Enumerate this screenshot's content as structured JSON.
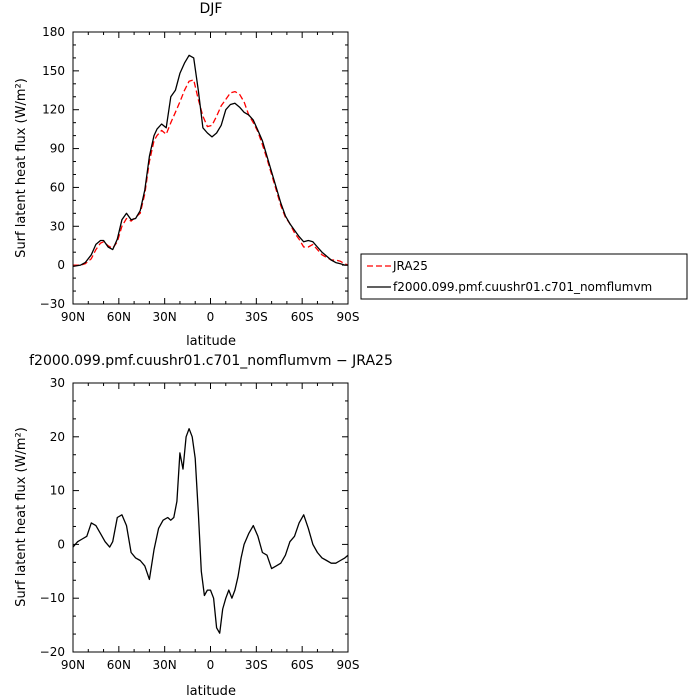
{
  "chart_data": [
    {
      "type": "line",
      "title": "DJF",
      "xlabel": "latitude",
      "ylabel": "Surf latent heat flux (W/m²)",
      "xlim": [
        -90,
        90
      ],
      "ylim": [
        -30,
        180
      ],
      "xticks": [
        -90,
        -60,
        -30,
        0,
        30,
        60,
        90
      ],
      "xticklabels": [
        "90N",
        "60N",
        "30N",
        "0",
        "30S",
        "60S",
        "90S"
      ],
      "yticks": [
        -30,
        0,
        30,
        60,
        90,
        120,
        150,
        180
      ],
      "yticklabels": [
        "−30",
        "0",
        "30",
        "60",
        "90",
        "120",
        "150",
        "180"
      ],
      "legend": "right",
      "series": [
        {
          "name": "JRA25",
          "color": "#ff0000",
          "style": "dashed",
          "x": [
            -90,
            -85,
            -82,
            -78,
            -75,
            -72,
            -70,
            -67,
            -64,
            -61,
            -58,
            -55,
            -52,
            -49,
            -46,
            -43,
            -40,
            -37,
            -35,
            -32,
            -29,
            -26,
            -23,
            -20,
            -17,
            -14,
            -11,
            -8,
            -5,
            -2,
            1,
            4,
            7,
            10,
            13,
            16,
            19,
            22,
            25,
            28,
            31,
            34,
            37,
            40,
            43,
            46,
            49,
            52,
            55,
            58,
            61,
            64,
            67,
            70,
            73,
            76,
            79,
            82,
            85,
            88,
            90
          ],
          "y": [
            0,
            0,
            1,
            5,
            12,
            17,
            18,
            15,
            13,
            18,
            30,
            36,
            34,
            37,
            40,
            55,
            80,
            96,
            100,
            104,
            101,
            110,
            118,
            126,
            135,
            142,
            143,
            128,
            115,
            107,
            108,
            115,
            123,
            128,
            133,
            134,
            132,
            126,
            116,
            110,
            103,
            93,
            82,
            70,
            58,
            46,
            37,
            32,
            25,
            20,
            14,
            14,
            16,
            12,
            8,
            6,
            4,
            4,
            3,
            1,
            0
          ]
        },
        {
          "name": "f2000.099.pmf.cuushr01.c701_nomflumvm",
          "color": "#000000",
          "style": "solid",
          "x": [
            -90,
            -85,
            -82,
            -78,
            -75,
            -72,
            -70,
            -67,
            -64,
            -61,
            -58,
            -55,
            -52,
            -49,
            -46,
            -43,
            -40,
            -37,
            -35,
            -32,
            -29,
            -26,
            -23,
            -20,
            -17,
            -14,
            -11,
            -8,
            -5,
            -2,
            1,
            4,
            7,
            10,
            13,
            16,
            19,
            22,
            25,
            28,
            31,
            34,
            37,
            40,
            43,
            46,
            49,
            52,
            55,
            58,
            61,
            64,
            67,
            70,
            73,
            76,
            79,
            82,
            85,
            88,
            90
          ],
          "y": [
            -1,
            0,
            2,
            8,
            16,
            19,
            19,
            14,
            12,
            20,
            35,
            40,
            35,
            36,
            42,
            58,
            84,
            100,
            105,
            109,
            106,
            130,
            135,
            148,
            156,
            162,
            160,
            135,
            106,
            102,
            99,
            102,
            108,
            120,
            124,
            125,
            122,
            118,
            116,
            112,
            104,
            96,
            84,
            72,
            60,
            48,
            38,
            32,
            27,
            22,
            18,
            19,
            18,
            14,
            10,
            7,
            4,
            2,
            1,
            0,
            0
          ]
        }
      ]
    },
    {
      "type": "line",
      "title": "f2000.099.pmf.cuushr01.c701_nomflumvm − JRA25",
      "xlabel": "latitude",
      "ylabel": "Surf latent heat flux (W/m²)",
      "xlim": [
        -90,
        90
      ],
      "ylim": [
        -20,
        30
      ],
      "xticks": [
        -90,
        -60,
        -30,
        0,
        30,
        60,
        90
      ],
      "xticklabels": [
        "90N",
        "60N",
        "30N",
        "0",
        "30S",
        "60S",
        "90S"
      ],
      "yticks": [
        -20,
        -10,
        0,
        10,
        20,
        30
      ],
      "yticklabels": [
        "−20",
        "−10",
        "0",
        "10",
        "20",
        "30"
      ],
      "series": [
        {
          "color": "#000000",
          "style": "solid",
          "x": [
            -90,
            -87,
            -84,
            -81,
            -78,
            -75,
            -72,
            -69,
            -66,
            -64,
            -61,
            -58,
            -55,
            -52,
            -49,
            -46,
            -43,
            -40,
            -37,
            -34,
            -31,
            -28,
            -26,
            -24,
            -22,
            -20,
            -18,
            -16,
            -14,
            -12,
            -10,
            -8,
            -6,
            -4,
            -2,
            0,
            2,
            4,
            6,
            8,
            10,
            12,
            14,
            16,
            18,
            20,
            22,
            25,
            28,
            31,
            34,
            37,
            40,
            43,
            46,
            49,
            52,
            55,
            58,
            61,
            64,
            67,
            70,
            73,
            76,
            79,
            82,
            85,
            88,
            90
          ],
          "y": [
            -0.5,
            0.5,
            1,
            1.5,
            4,
            3.5,
            2,
            0.5,
            -0.5,
            0.5,
            5,
            5.5,
            3.5,
            -1.5,
            -2.5,
            -3,
            -4,
            -6.5,
            -1,
            3,
            4.5,
            5,
            4.5,
            5,
            8,
            17,
            14,
            20,
            21.5,
            20,
            16,
            6,
            -5,
            -9.5,
            -8.5,
            -8.5,
            -10,
            -15.5,
            -16.5,
            -12,
            -10,
            -8.5,
            -10,
            -8.5,
            -6,
            -2.5,
            0,
            2,
            3.5,
            1.5,
            -1.5,
            -2,
            -4.5,
            -4,
            -3.5,
            -2,
            0.5,
            1.5,
            4,
            5.5,
            3,
            0,
            -1.5,
            -2.5,
            -3,
            -3.5,
            -3.5,
            -3,
            -2.5,
            -2
          ]
        }
      ]
    }
  ]
}
